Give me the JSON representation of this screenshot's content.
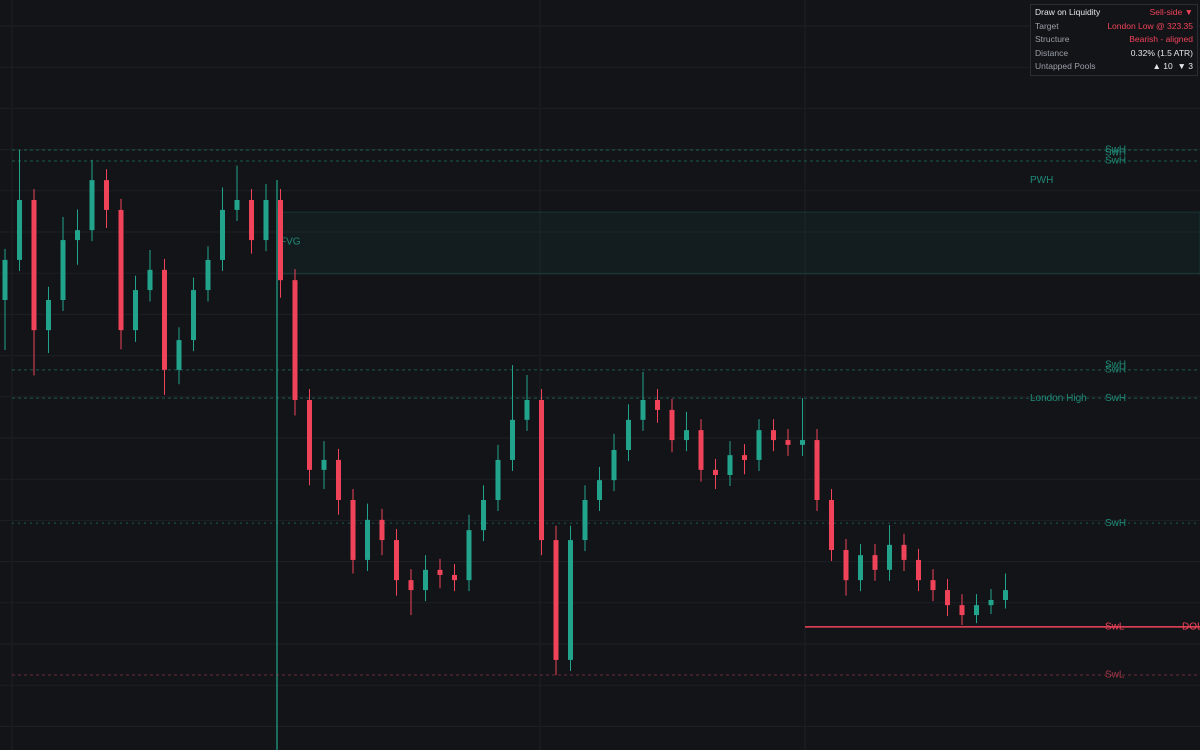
{
  "chart_data": {
    "type": "candlestick",
    "ylim": [
      320,
      340.4
    ],
    "up_color": "#22a38c",
    "down_color": "#f0435a",
    "open": [
      332.24,
      333.33,
      334.96,
      331.42,
      332.24,
      333.87,
      334.14,
      335.5,
      334.69,
      331.42,
      332.51,
      333.06,
      330.34,
      331.15,
      332.51,
      333.33,
      334.69,
      334.96,
      333.87,
      334.96,
      332.78,
      329.52,
      327.62,
      327.89,
      326.8,
      325.17,
      326.26,
      325.71,
      324.62,
      324.35,
      324.9,
      324.76,
      324.62,
      325.98,
      326.8,
      327.89,
      328.98,
      329.52,
      325.71,
      322.45,
      325.71,
      326.8,
      327.34,
      328.16,
      328.98,
      329.52,
      329.25,
      328.43,
      328.7,
      327.62,
      327.48,
      328.02,
      327.89,
      328.7,
      328.43,
      328.3,
      328.43,
      326.8,
      325.44,
      324.62,
      325.3,
      324.9,
      325.58,
      325.17,
      324.62,
      324.35,
      323.94,
      323.67,
      323.94,
      324.08
    ],
    "high": [
      333.63,
      336.32,
      335.26,
      332.6,
      334.5,
      334.7,
      336.05,
      335.8,
      334.99,
      332.9,
      333.6,
      333.36,
      331.5,
      332.85,
      333.7,
      335.3,
      335.9,
      335.26,
      335.4,
      335.26,
      333.08,
      329.82,
      328.4,
      328.19,
      327.1,
      326.7,
      326.56,
      326.01,
      324.92,
      325.3,
      325.2,
      325.06,
      326.4,
      327.2,
      328.3,
      330.47,
      330.2,
      329.82,
      326.1,
      326.1,
      327.2,
      327.7,
      328.6,
      329.4,
      330.28,
      329.82,
      329.55,
      329.2,
      329.0,
      327.92,
      328.4,
      328.32,
      329.0,
      329.0,
      328.73,
      329.57,
      328.73,
      327.1,
      325.74,
      325.6,
      325.6,
      326.12,
      325.88,
      325.47,
      324.92,
      324.65,
      324.24,
      324.24,
      324.38,
      324.8
    ],
    "low": [
      330.88,
      333.03,
      330.19,
      330.8,
      331.94,
      333.2,
      333.84,
      334.2,
      330.9,
      331.1,
      332.2,
      329.66,
      329.95,
      330.85,
      332.2,
      333.03,
      334.39,
      333.5,
      333.57,
      332.3,
      329.1,
      327.2,
      327.1,
      326.4,
      324.8,
      324.87,
      325.3,
      324.2,
      323.67,
      324.05,
      324.4,
      324.32,
      324.32,
      325.68,
      326.5,
      327.59,
      328.68,
      325.3,
      322.04,
      322.15,
      325.41,
      326.5,
      327.04,
      327.86,
      328.68,
      328.9,
      328.1,
      328.13,
      327.3,
      327.1,
      327.18,
      327.5,
      327.59,
      328.13,
      328.0,
      328.0,
      326.5,
      325.14,
      324.2,
      324.32,
      324.6,
      324.6,
      324.87,
      324.32,
      324.05,
      323.64,
      323.4,
      323.45,
      323.7,
      323.85
    ],
    "close": [
      333.33,
      334.96,
      331.42,
      332.24,
      333.87,
      334.14,
      335.5,
      334.69,
      331.42,
      332.51,
      333.06,
      330.34,
      331.15,
      332.51,
      333.33,
      334.69,
      334.96,
      333.87,
      334.96,
      332.78,
      329.52,
      327.62,
      327.89,
      326.8,
      325.17,
      326.26,
      325.71,
      324.62,
      324.35,
      324.9,
      324.76,
      324.62,
      325.98,
      326.8,
      327.89,
      328.98,
      329.52,
      325.71,
      322.45,
      325.71,
      326.8,
      327.34,
      328.16,
      328.98,
      329.52,
      329.25,
      328.43,
      328.7,
      327.62,
      327.48,
      328.02,
      327.89,
      328.7,
      328.43,
      328.3,
      328.43,
      326.8,
      325.44,
      324.62,
      325.3,
      324.9,
      325.58,
      325.17,
      324.62,
      324.35,
      323.94,
      323.67,
      323.94,
      324.08,
      324.35
    ],
    "levels": [
      {
        "label": "SwH",
        "value": 336.32,
        "color": "#1f8a76",
        "style": "dashed"
      },
      {
        "label": "SwH",
        "value": 336.24,
        "color": "#1f8a76",
        "style": "none"
      },
      {
        "label": "SwH",
        "value": 336.02,
        "color": "#1f8a76",
        "style": "dashed"
      },
      {
        "label": "SwH",
        "value": 330.47,
        "color": "#1f8a76",
        "style": "none"
      },
      {
        "label": "SwH",
        "value": 330.34,
        "color": "#1f8a76",
        "style": "dashed"
      },
      {
        "label": "SwH",
        "value": 329.57,
        "color": "#1f8a76",
        "style": "dashed"
      },
      {
        "label": "SwH",
        "value": 326.17,
        "color": "#1f8a76",
        "style": "dotted"
      },
      {
        "label": "SwL",
        "value": 323.35,
        "color": "#f0435a",
        "style": "solid"
      },
      {
        "label": "SwL",
        "value": 322.04,
        "color": "#a8384a",
        "style": "dashed"
      }
    ],
    "annotations": [
      {
        "label": "PWH",
        "value": 335.5,
        "color": "#1f8a76"
      },
      {
        "label": "London High",
        "value": 329.57,
        "color": "#1f8a76"
      },
      {
        "label": "DOL",
        "value": 323.35,
        "color": "#f0435a"
      }
    ],
    "zones": [
      {
        "label": "FVG",
        "top": 334.63,
        "bottom": 332.95,
        "color": "#1f8a76"
      }
    ]
  },
  "panel": {
    "rows": [
      [
        "Draw on Liquidity",
        "Sell-side ▼"
      ],
      [
        "Target",
        "London Low @ 323.35"
      ],
      [
        "Structure",
        "Bearish - aligned"
      ],
      [
        "Distance",
        "0.32% (1.5 ATR)"
      ],
      [
        "Untapped Pools",
        "▲ 10  ▼ 3"
      ]
    ]
  }
}
